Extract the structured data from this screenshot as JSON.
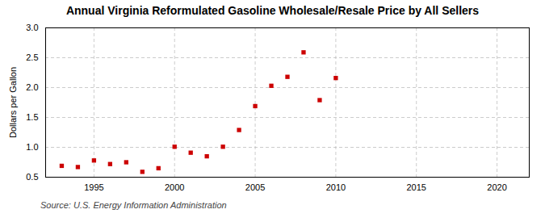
{
  "chart_data": {
    "type": "scatter",
    "title": "Annual Virginia Reformulated Gasoline Wholesale/Resale Price by All Sellers",
    "ylabel": "Dollars per Gallon",
    "source": "Source: U.S. Energy Information Administration",
    "x": [
      1993,
      1994,
      1995,
      1996,
      1997,
      1998,
      1999,
      2000,
      2001,
      2002,
      2003,
      2004,
      2005,
      2006,
      2007,
      2008,
      2009,
      2010
    ],
    "values": [
      0.69,
      0.67,
      0.78,
      0.72,
      0.75,
      0.59,
      0.65,
      1.01,
      0.91,
      0.85,
      1.01,
      1.29,
      1.69,
      2.03,
      2.18,
      2.59,
      1.79,
      2.16
    ],
    "color": "#cc0000",
    "marker": "square",
    "xlim": [
      1992,
      2022
    ],
    "ylim": [
      0.5,
      3.0
    ],
    "xticks": [
      1995,
      2000,
      2005,
      2010,
      2015,
      2020
    ],
    "yticks": [
      0.5,
      {
        "value": 1.0,
        "label": "1.0"
      },
      1.5,
      {
        "value": 2.0,
        "label": "2.0"
      },
      2.5,
      {
        "value": 3.0,
        "label": "3.0"
      }
    ],
    "grid": true
  }
}
